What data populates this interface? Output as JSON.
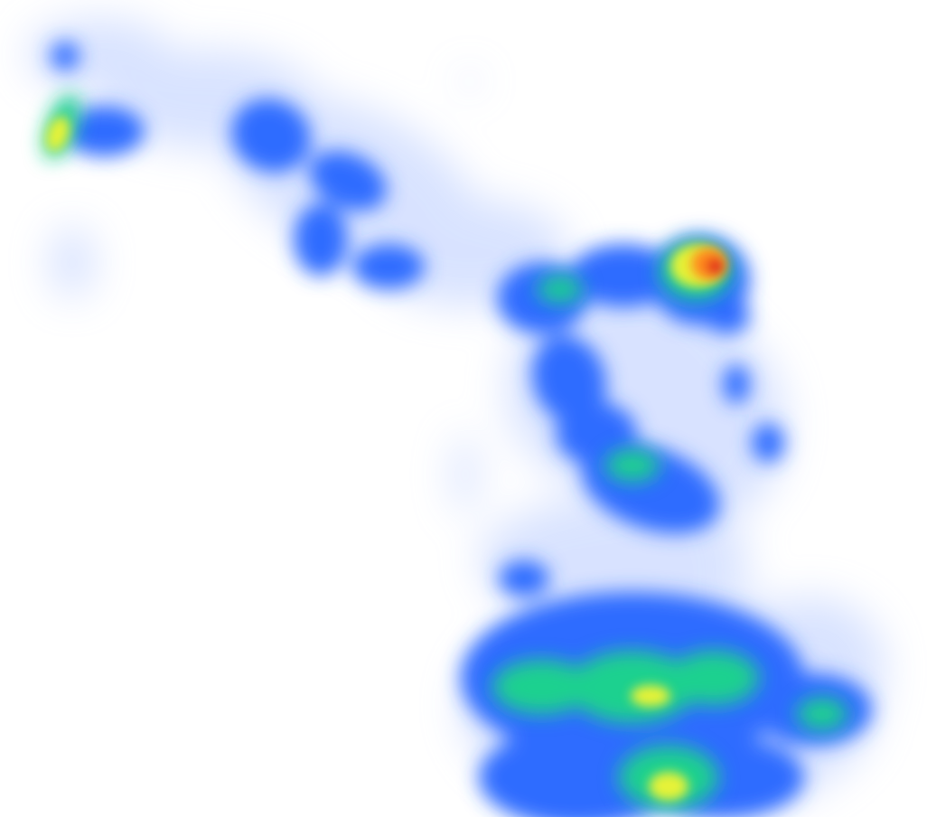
{
  "image": {
    "kind": "attention-heatmap",
    "background": "#ffffff",
    "colormap": [
      "#c9d8ff",
      "#2f6cff",
      "#1a4df0",
      "#1fd18f",
      "#e6f238",
      "#ff8a1c",
      "#e0201a"
    ]
  }
}
